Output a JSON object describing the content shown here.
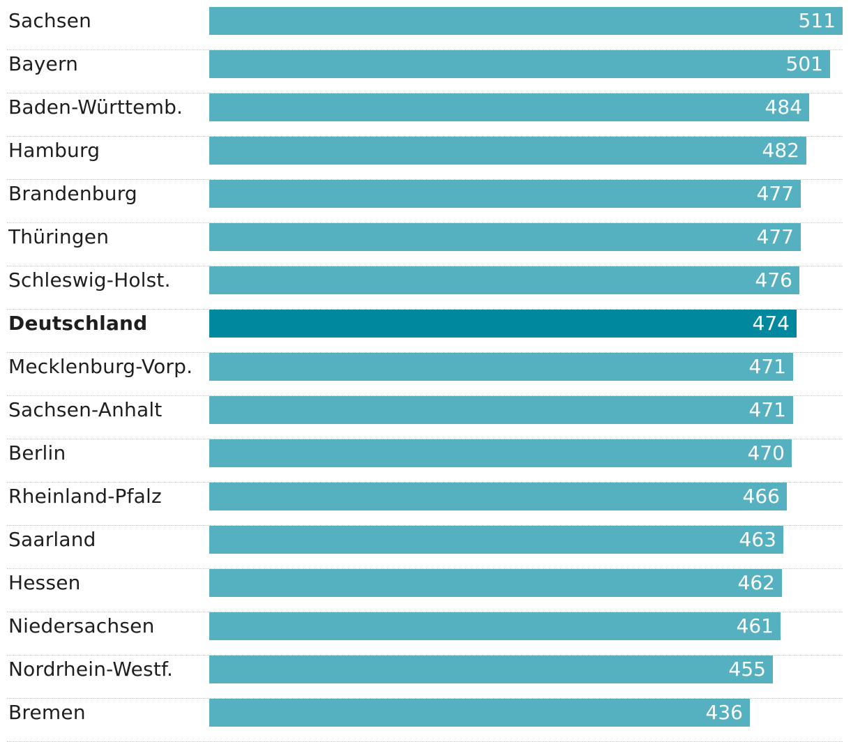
{
  "chart_data": {
    "type": "bar",
    "orientation": "horizontal",
    "title": "",
    "xlabel": "",
    "ylabel": "",
    "categories": [
      "Sachsen",
      "Bayern",
      "Baden-Württemb.",
      "Hamburg",
      "Brandenburg",
      "Thüringen",
      "Schleswig-Holst.",
      "Deutschland",
      "Mecklenburg-Vorp.",
      "Sachsen-Anhalt",
      "Berlin",
      "Rheinland-Pfalz",
      "Saarland",
      "Hessen",
      "Niedersachsen",
      "Nordrhein-Westf.",
      "Bremen"
    ],
    "values": [
      511,
      501,
      484,
      482,
      477,
      477,
      476,
      474,
      471,
      471,
      470,
      466,
      463,
      462,
      461,
      455,
      436
    ],
    "highlight": "Deutschland",
    "xlim": [
      0,
      511
    ],
    "grid": false,
    "legend": "none",
    "colors": {
      "bar": "#55b0bf",
      "highlight": "#00889e",
      "value_text": "#ffffff",
      "label_text": "#1e1e1e"
    }
  }
}
